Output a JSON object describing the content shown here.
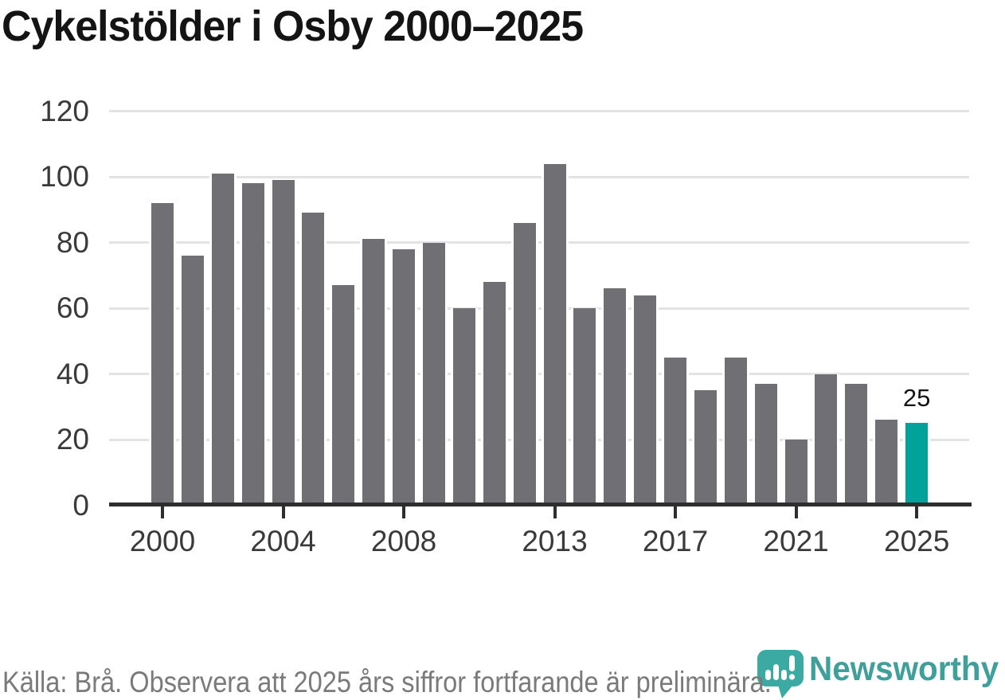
{
  "title": "Cykelstölder i Osby 2000–2025",
  "chart_data": {
    "type": "bar",
    "categories": [
      2000,
      2001,
      2002,
      2003,
      2004,
      2005,
      2006,
      2007,
      2008,
      2009,
      2010,
      2011,
      2012,
      2013,
      2014,
      2015,
      2016,
      2017,
      2018,
      2019,
      2020,
      2021,
      2022,
      2023,
      2024,
      2025
    ],
    "values": [
      92,
      76,
      101,
      98,
      99,
      89,
      67,
      81,
      78,
      80,
      60,
      68,
      86,
      104,
      60,
      66,
      64,
      45,
      35,
      45,
      37,
      20,
      40,
      37,
      26,
      25
    ],
    "title": "Cykelstölder i Osby 2000–2025",
    "xlabel": "",
    "ylabel": "",
    "ylim": [
      0,
      120
    ],
    "y_ticks": [
      0,
      20,
      40,
      60,
      80,
      100,
      120
    ],
    "x_tick_labels": [
      "2000",
      "2004",
      "2008",
      "2013",
      "2017",
      "2021",
      "2025"
    ],
    "x_tick_years": [
      2000,
      2004,
      2008,
      2013,
      2017,
      2021,
      2025
    ],
    "grid": true,
    "legend": "none",
    "bar_color": "#6f6f74",
    "highlight_year": 2025,
    "highlight_color": "#00a29a",
    "annotation": {
      "year": 2025,
      "text": "25"
    }
  },
  "footer": {
    "source_note": "Källa: Brå. Observera att 2025 års siffror fortfarande är preliminära."
  },
  "branding": {
    "name": "Newsworthy",
    "icon_color": "#3baaa2",
    "wordmark_color": "#3f9f9a"
  }
}
